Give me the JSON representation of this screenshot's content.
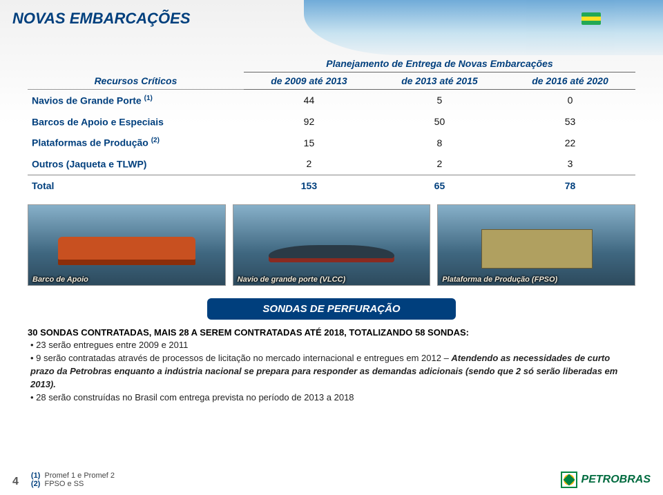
{
  "slide": {
    "title": "NOVAS EMBARCAÇÕES",
    "page_number": "4"
  },
  "table": {
    "row_header_label": "Recursos Críticos",
    "spanned_header": "Planejamento de Entrega de Novas Embarcações",
    "period_labels": [
      "de 2009 até 2013",
      "de 2013 até 2015",
      "de 2016 até 2020"
    ],
    "rows": [
      {
        "label": "Navios de Grande Porte",
        "sup": "(1)",
        "values": [
          "44",
          "5",
          "0"
        ]
      },
      {
        "label": "Barcos de Apoio e Especiais",
        "sup": "",
        "values": [
          "92",
          "50",
          "53"
        ]
      },
      {
        "label": "Plataformas de Produção",
        "sup": "(2)",
        "values": [
          "15",
          "8",
          "22"
        ]
      },
      {
        "label": "Outros (Jaqueta e TLWP)",
        "sup": "",
        "values": [
          "2",
          "2",
          "3"
        ]
      }
    ],
    "total": {
      "label": "Total",
      "values": [
        "153",
        "65",
        "78"
      ]
    }
  },
  "images": {
    "captions": [
      "Barco de Apoio",
      "Navio de grande porte (VLCC)",
      "Plataforma de Produção (FPSO)"
    ]
  },
  "pill": "SONDAS DE PERFURAÇÃO",
  "bullets": {
    "lead": "30 SONDAS CONTRATADAS, MAIS 28 A SEREM CONTRATADAS ATÉ 2018, TOTALIZANDO 58 SONDAS:",
    "items": [
      "23 serão entregues entre 2009 e 2011",
      "9 serão contratadas através de processos de licitação no mercado internacional e entregues em 2012 – Atendendo as necessidades de curto prazo da Petrobras enquanto a indústria nacional se prepara para responder as demandas adicionais (sendo que 2 só serão liberadas em 2013).",
      "28 serão construídas no Brasil com entrega prevista no período de 2013 a 2018"
    ],
    "emphasis_in_item2": "Atendendo as necessidades de curto prazo da Petrobras enquanto a indústria nacional se prepara para responder as demandas adicionais (sendo que 2 só serão liberadas em 2013)."
  },
  "footnotes": [
    {
      "mark": "(1)",
      "text": "Promef 1 e Promef 2"
    },
    {
      "mark": "(2)",
      "text": "FPSO e SS"
    }
  ],
  "logo": {
    "text": "PETROBRAS"
  },
  "colors": {
    "brand_blue": "#003f7d",
    "green": "#008542",
    "yellow": "#fdb913"
  }
}
